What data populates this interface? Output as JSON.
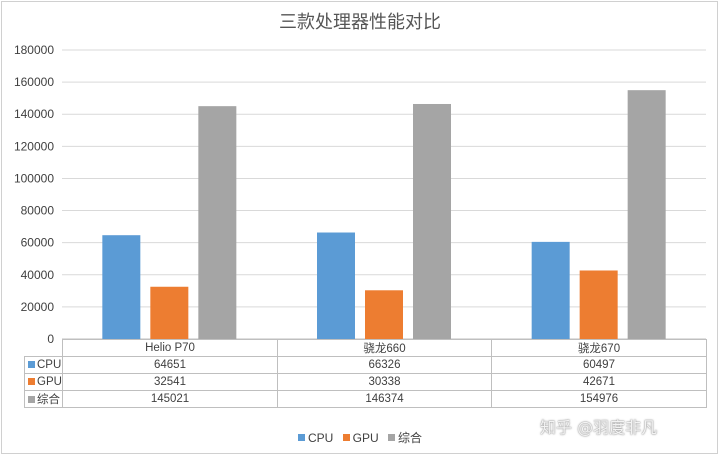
{
  "chart_data": {
    "type": "bar",
    "title": "三款处理器性能对比",
    "categories": [
      "Helio P70",
      "骁龙660",
      "骁龙670"
    ],
    "series": [
      {
        "name": "CPU",
        "values": [
          64651,
          66326,
          60497
        ],
        "color": "#5b9bd5"
      },
      {
        "name": "GPU",
        "values": [
          32541,
          30338,
          42671
        ],
        "color": "#ed7d31"
      },
      {
        "name": "综合",
        "values": [
          145021,
          146374,
          154976
        ],
        "color": "#a5a5a5"
      }
    ],
    "ylim": [
      0,
      180000
    ],
    "yticks": [
      "0",
      "20000",
      "40000",
      "60000",
      "80000",
      "100000",
      "120000",
      "140000",
      "160000",
      "180000"
    ],
    "grid": true,
    "legend": "bottom",
    "data_table": true
  },
  "table": {
    "rows": [
      {
        "label": "CPU",
        "cells": [
          "64651",
          "66326",
          "60497"
        ]
      },
      {
        "label": "GPU",
        "cells": [
          "32541",
          "30338",
          "42671"
        ]
      },
      {
        "label": "综合",
        "cells": [
          "145021",
          "146374",
          "154976"
        ]
      }
    ]
  },
  "watermark": "知乎 @羽度非凡"
}
